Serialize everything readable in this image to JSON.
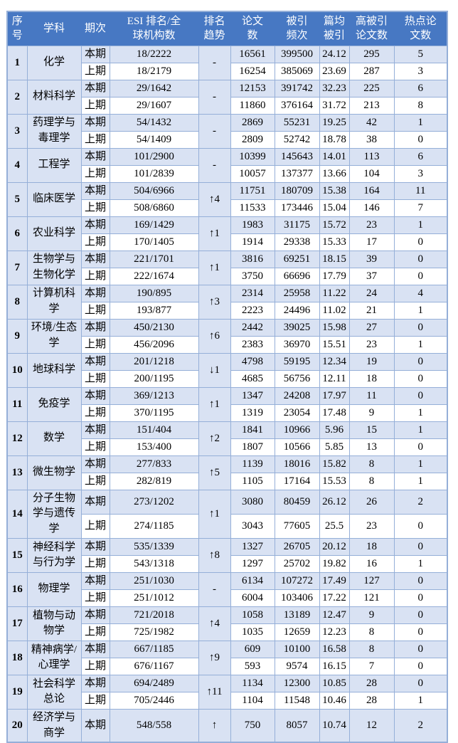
{
  "colors": {
    "header_bg": "#4778C3",
    "header_text": "#ffffff",
    "row_shade": "#D9E2F3",
    "row_plain": "#ffffff",
    "border": "#95AFD8"
  },
  "chart_data": {
    "type": "table",
    "headers": [
      "序\n号",
      "学科",
      "期次",
      "ESI 排名/全\n球机构数",
      "排名\n趋势",
      "论文\n数",
      "被引\n频次",
      "篇均\n被引",
      "高被引\n论文数",
      "热点论\n文数"
    ],
    "rows": [
      {
        "no": "1",
        "subject": "化学",
        "trend": "-",
        "periods": [
          {
            "label": "本期",
            "rank": "18/2222",
            "papers": "16561",
            "citations": "399500",
            "avg": "24.12",
            "high": "295",
            "hot": "5"
          },
          {
            "label": "上期",
            "rank": "18/2179",
            "papers": "16254",
            "citations": "385069",
            "avg": "23.69",
            "high": "287",
            "hot": "3"
          }
        ]
      },
      {
        "no": "2",
        "subject": "材料科学",
        "trend": "-",
        "periods": [
          {
            "label": "本期",
            "rank": "29/1642",
            "papers": "12153",
            "citations": "391742",
            "avg": "32.23",
            "high": "225",
            "hot": "6"
          },
          {
            "label": "上期",
            "rank": "29/1607",
            "papers": "11860",
            "citations": "376164",
            "avg": "31.72",
            "high": "213",
            "hot": "8"
          }
        ]
      },
      {
        "no": "3",
        "subject": "药理学与毒理学",
        "trend": "-",
        "periods": [
          {
            "label": "本期",
            "rank": "54/1432",
            "papers": "2869",
            "citations": "55231",
            "avg": "19.25",
            "high": "42",
            "hot": "1"
          },
          {
            "label": "上期",
            "rank": "54/1409",
            "papers": "2809",
            "citations": "52742",
            "avg": "18.78",
            "high": "38",
            "hot": "0"
          }
        ]
      },
      {
        "no": "4",
        "subject": "工程学",
        "trend": "-",
        "periods": [
          {
            "label": "本期",
            "rank": "101/2900",
            "papers": "10399",
            "citations": "145643",
            "avg": "14.01",
            "high": "113",
            "hot": "6"
          },
          {
            "label": "上期",
            "rank": "101/2839",
            "papers": "10057",
            "citations": "137377",
            "avg": "13.66",
            "high": "104",
            "hot": "3"
          }
        ]
      },
      {
        "no": "5",
        "subject": "临床医学",
        "trend": "↑4",
        "periods": [
          {
            "label": "本期",
            "rank": "504/6966",
            "papers": "11751",
            "citations": "180709",
            "avg": "15.38",
            "high": "164",
            "hot": "11"
          },
          {
            "label": "上期",
            "rank": "508/6860",
            "papers": "11533",
            "citations": "173446",
            "avg": "15.04",
            "high": "146",
            "hot": "7"
          }
        ]
      },
      {
        "no": "6",
        "subject": "农业科学",
        "trend": "↑1",
        "periods": [
          {
            "label": "本期",
            "rank": "169/1429",
            "papers": "1983",
            "citations": "31175",
            "avg": "15.72",
            "high": "23",
            "hot": "1"
          },
          {
            "label": "上期",
            "rank": "170/1405",
            "papers": "1914",
            "citations": "29338",
            "avg": "15.33",
            "high": "17",
            "hot": "0"
          }
        ]
      },
      {
        "no": "7",
        "subject": "生物学与生物化学",
        "trend": "↑1",
        "periods": [
          {
            "label": "本期",
            "rank": "221/1701",
            "papers": "3816",
            "citations": "69251",
            "avg": "18.15",
            "high": "39",
            "hot": "0"
          },
          {
            "label": "上期",
            "rank": "222/1674",
            "papers": "3750",
            "citations": "66696",
            "avg": "17.79",
            "high": "37",
            "hot": "0"
          }
        ]
      },
      {
        "no": "8",
        "subject": "计算机科学",
        "trend": "↑3",
        "periods": [
          {
            "label": "本期",
            "rank": "190/895",
            "papers": "2314",
            "citations": "25958",
            "avg": "11.22",
            "high": "24",
            "hot": "4"
          },
          {
            "label": "上期",
            "rank": "193/877",
            "papers": "2223",
            "citations": "24496",
            "avg": "11.02",
            "high": "21",
            "hot": "1"
          }
        ]
      },
      {
        "no": "9",
        "subject": "环境/生态学",
        "trend": "↑6",
        "periods": [
          {
            "label": "本期",
            "rank": "450/2130",
            "papers": "2442",
            "citations": "39025",
            "avg": "15.98",
            "high": "27",
            "hot": "0"
          },
          {
            "label": "上期",
            "rank": "456/2096",
            "papers": "2383",
            "citations": "36970",
            "avg": "15.51",
            "high": "23",
            "hot": "1"
          }
        ]
      },
      {
        "no": "10",
        "subject": "地球科学",
        "trend": "↓1",
        "periods": [
          {
            "label": "本期",
            "rank": "201/1218",
            "papers": "4798",
            "citations": "59195",
            "avg": "12.34",
            "high": "19",
            "hot": "0"
          },
          {
            "label": "上期",
            "rank": "200/1195",
            "papers": "4685",
            "citations": "56756",
            "avg": "12.11",
            "high": "18",
            "hot": "0"
          }
        ]
      },
      {
        "no": "11",
        "subject": "免疫学",
        "trend": "↑1",
        "periods": [
          {
            "label": "本期",
            "rank": "369/1213",
            "papers": "1347",
            "citations": "24208",
            "avg": "17.97",
            "high": "11",
            "hot": "0"
          },
          {
            "label": "上期",
            "rank": "370/1195",
            "papers": "1319",
            "citations": "23054",
            "avg": "17.48",
            "high": "9",
            "hot": "1"
          }
        ]
      },
      {
        "no": "12",
        "subject": "数学",
        "trend": "↑2",
        "periods": [
          {
            "label": "本期",
            "rank": "151/404",
            "papers": "1841",
            "citations": "10966",
            "avg": "5.96",
            "high": "15",
            "hot": "1"
          },
          {
            "label": "上期",
            "rank": "153/400",
            "papers": "1807",
            "citations": "10566",
            "avg": "5.85",
            "high": "13",
            "hot": "0"
          }
        ]
      },
      {
        "no": "13",
        "subject": "微生物学",
        "trend": "↑5",
        "periods": [
          {
            "label": "本期",
            "rank": "277/833",
            "papers": "1139",
            "citations": "18016",
            "avg": "15.82",
            "high": "8",
            "hot": "1"
          },
          {
            "label": "上期",
            "rank": "282/819",
            "papers": "1105",
            "citations": "17164",
            "avg": "15.53",
            "high": "8",
            "hot": "1"
          }
        ]
      },
      {
        "no": "14",
        "subject": "分子生物学与遗传学",
        "trend": "↑1",
        "periods": [
          {
            "label": "本期",
            "rank": "273/1202",
            "papers": "3080",
            "citations": "80459",
            "avg": "26.12",
            "high": "26",
            "hot": "2"
          },
          {
            "label": "上期",
            "rank": "274/1185",
            "papers": "3043",
            "citations": "77605",
            "avg": "25.5",
            "high": "23",
            "hot": "0"
          }
        ]
      },
      {
        "no": "15",
        "subject": "神经科学与行为学",
        "trend": "↑8",
        "periods": [
          {
            "label": "本期",
            "rank": "535/1339",
            "papers": "1327",
            "citations": "26705",
            "avg": "20.12",
            "high": "18",
            "hot": "0"
          },
          {
            "label": "上期",
            "rank": "543/1318",
            "papers": "1297",
            "citations": "25702",
            "avg": "19.82",
            "high": "16",
            "hot": "1"
          }
        ]
      },
      {
        "no": "16",
        "subject": "物理学",
        "trend": "-",
        "periods": [
          {
            "label": "本期",
            "rank": "251/1030",
            "papers": "6134",
            "citations": "107272",
            "avg": "17.49",
            "high": "127",
            "hot": "0"
          },
          {
            "label": "上期",
            "rank": "251/1012",
            "papers": "6004",
            "citations": "103406",
            "avg": "17.22",
            "high": "121",
            "hot": "0"
          }
        ]
      },
      {
        "no": "17",
        "subject": "植物与动物学",
        "trend": "↑4",
        "periods": [
          {
            "label": "本期",
            "rank": "721/2018",
            "papers": "1058",
            "citations": "13189",
            "avg": "12.47",
            "high": "9",
            "hot": "0"
          },
          {
            "label": "上期",
            "rank": "725/1982",
            "papers": "1035",
            "citations": "12659",
            "avg": "12.23",
            "high": "8",
            "hot": "0"
          }
        ]
      },
      {
        "no": "18",
        "subject": "精神病学/心理学",
        "trend": "↑9",
        "periods": [
          {
            "label": "本期",
            "rank": "667/1185",
            "papers": "609",
            "citations": "10100",
            "avg": "16.58",
            "high": "8",
            "hot": "0"
          },
          {
            "label": "上期",
            "rank": "676/1167",
            "papers": "593",
            "citations": "9574",
            "avg": "16.15",
            "high": "7",
            "hot": "0"
          }
        ]
      },
      {
        "no": "19",
        "subject": "社会科学总论",
        "trend": "↑11",
        "periods": [
          {
            "label": "本期",
            "rank": "694/2489",
            "papers": "1134",
            "citations": "12300",
            "avg": "10.85",
            "high": "28",
            "hot": "0"
          },
          {
            "label": "上期",
            "rank": "705/2446",
            "papers": "1104",
            "citations": "11548",
            "avg": "10.46",
            "high": "28",
            "hot": "1"
          }
        ]
      },
      {
        "no": "20",
        "subject": "经济学与商学",
        "trend": "↑",
        "periods": [
          {
            "label": "本期",
            "rank": "548/558",
            "papers": "750",
            "citations": "8057",
            "avg": "10.74",
            "high": "12",
            "hot": "2"
          }
        ]
      }
    ]
  }
}
